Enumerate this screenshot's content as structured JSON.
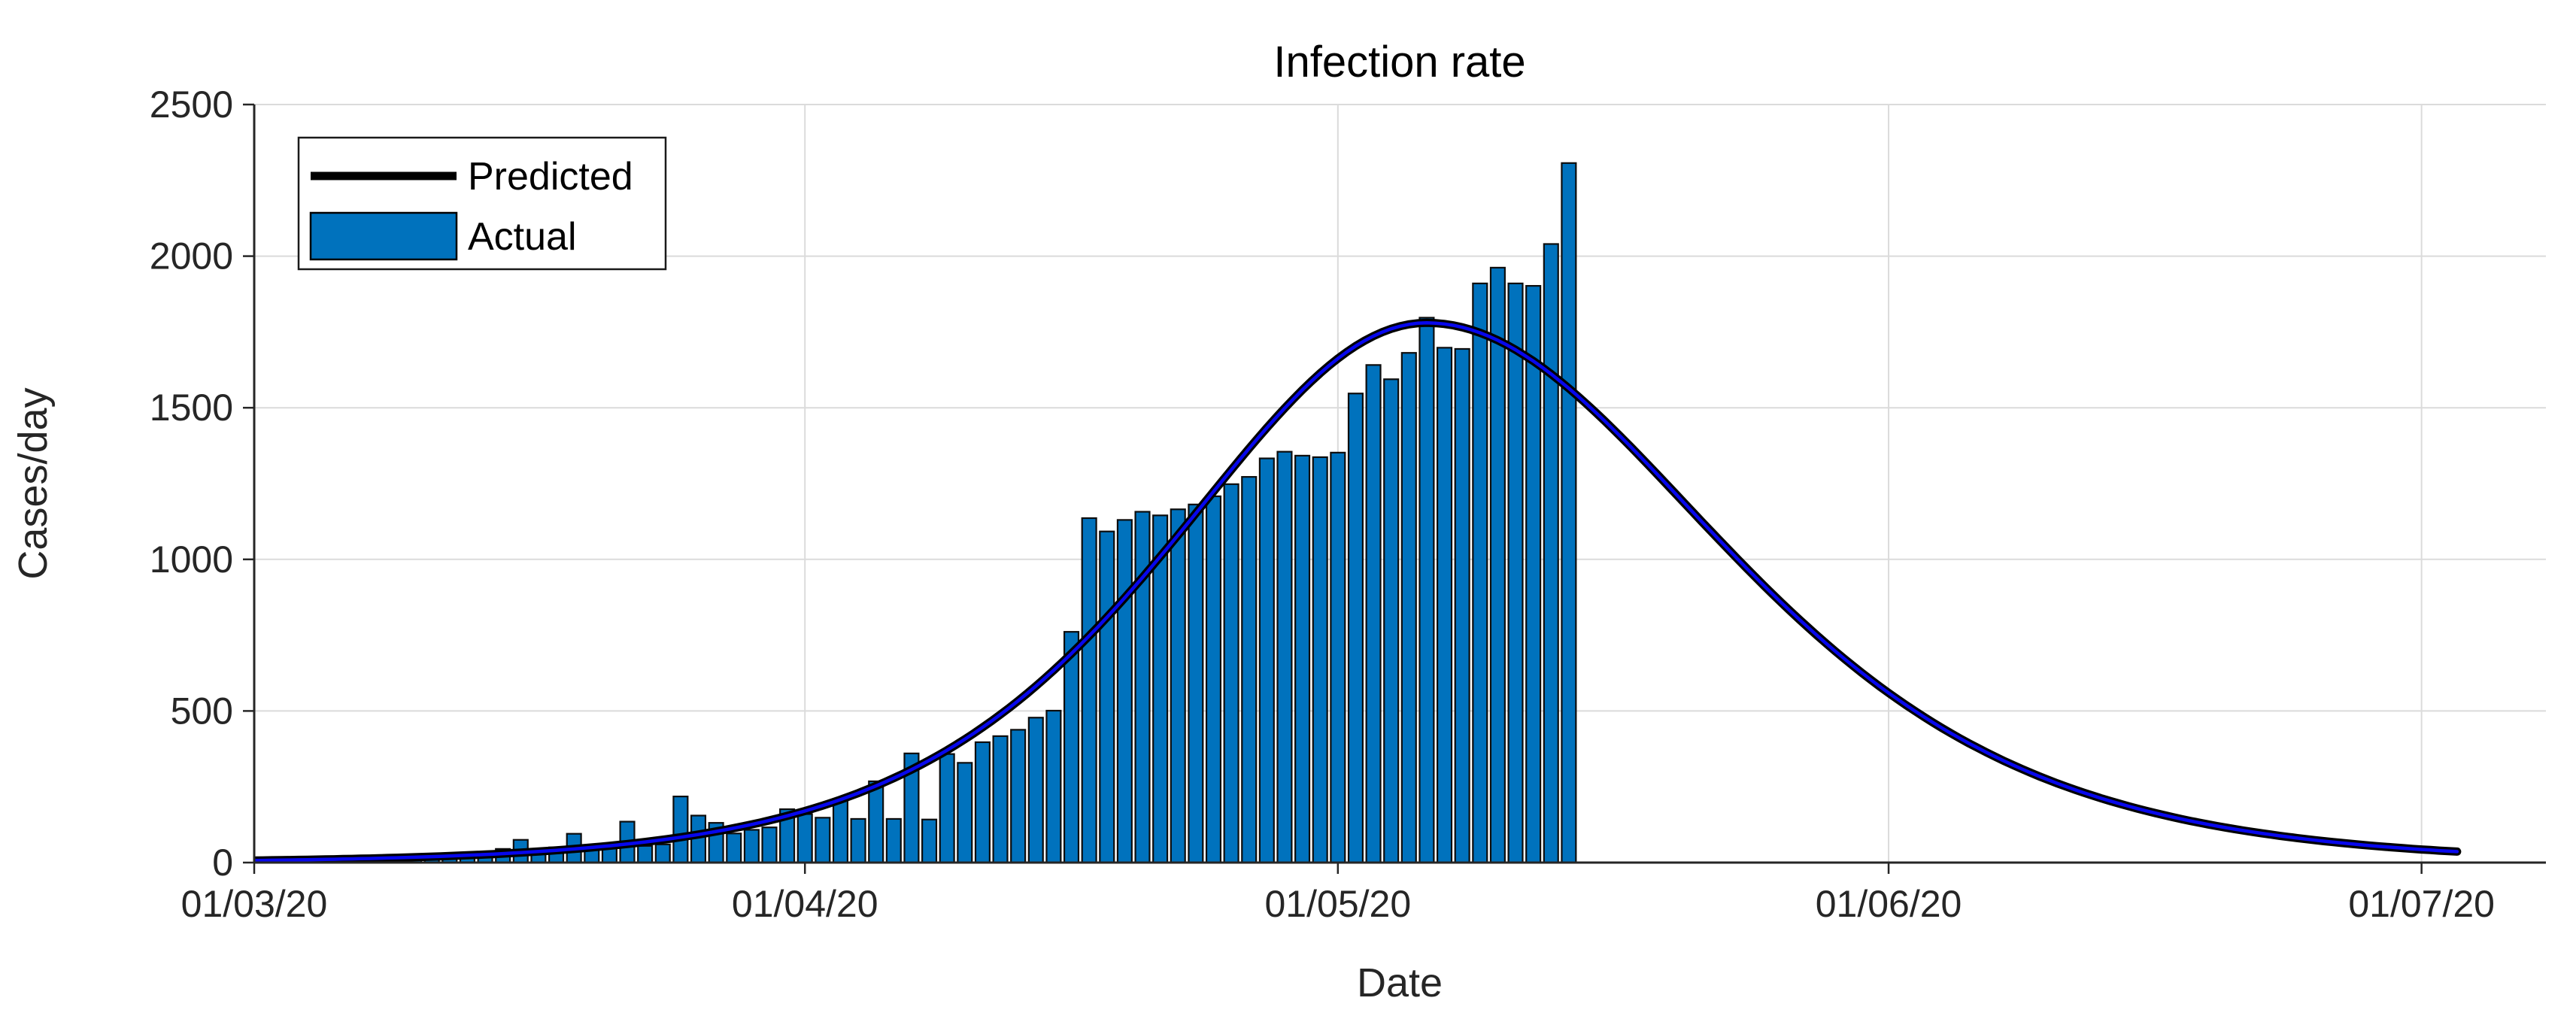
{
  "title": "Infection rate",
  "xlabel": "Date",
  "ylabel": "Cases/day",
  "legend": [
    {
      "label": "Predicted",
      "type": "line",
      "color": "#000000"
    },
    {
      "label": "Actual",
      "type": "bar",
      "color": "#0072BD"
    }
  ],
  "colors": {
    "background": "#FFFFFF",
    "bar_fill": "#0072BD",
    "bar_edge": "#0d0d0d",
    "predicted_outer": "#000000",
    "predicted_inner": "#0707EC",
    "grid": "#DBDBDB",
    "axis": "#262626",
    "tick_text": "#262626",
    "legend_border": "#1a1a1a"
  },
  "chart_data": {
    "type": "bar+line",
    "title": "Infection rate",
    "xlabel": "Date",
    "ylabel": "Cases/day",
    "grid": true,
    "legend_position": "upper-left",
    "x_axis": {
      "tick_labels": [
        "01/03/20",
        "01/04/20",
        "01/05/20",
        "01/06/20",
        "01/07/20"
      ],
      "tick_days": [
        0,
        31,
        61,
        92,
        122
      ],
      "day_range": [
        0,
        129
      ]
    },
    "y_axis": {
      "ticks": [
        0,
        500,
        1000,
        1500,
        2000,
        2500
      ],
      "ylim": [
        0,
        2500
      ]
    },
    "actual_bars": {
      "series_name": "Actual",
      "start_date": "01/03/20",
      "interval": "1 day",
      "values": [
        8,
        5,
        6,
        9,
        7,
        10,
        12,
        9,
        14,
        12,
        16,
        20,
        25,
        30,
        45,
        75,
        45,
        50,
        95,
        50,
        55,
        135,
        55,
        60,
        218,
        155,
        131,
        96,
        108,
        116,
        176,
        160,
        148,
        206,
        144,
        268,
        144,
        360,
        142,
        358,
        329,
        397,
        417,
        438,
        478,
        501,
        761,
        1136,
        1092,
        1130,
        1157,
        1145,
        1165,
        1181,
        1208,
        1248,
        1272,
        1333,
        1355,
        1342,
        1337,
        1352,
        1547,
        1641,
        1594,
        1681,
        1797,
        1698,
        1694,
        1910,
        1962,
        1910,
        1902,
        2040,
        2307
      ]
    },
    "predicted_curve": {
      "series_name": "Predicted",
      "model": "sech2_logistic_derivative",
      "peak_value": 1780,
      "peak_day": 66,
      "tau_rise_days": 9.5,
      "tau_fall_days": 11,
      "day_start": 0,
      "day_end": 124,
      "checkpoints": [
        {
          "date": "01/03/20",
          "value": 8
        },
        {
          "date": "01/04/20",
          "value": 175
        },
        {
          "date": "06/05/20",
          "value": 1780
        },
        {
          "date": "01/06/20",
          "value": 480
        },
        {
          "date": "01/07/20",
          "value": 40
        },
        {
          "date": "03/07/20",
          "value": 25
        }
      ]
    }
  }
}
